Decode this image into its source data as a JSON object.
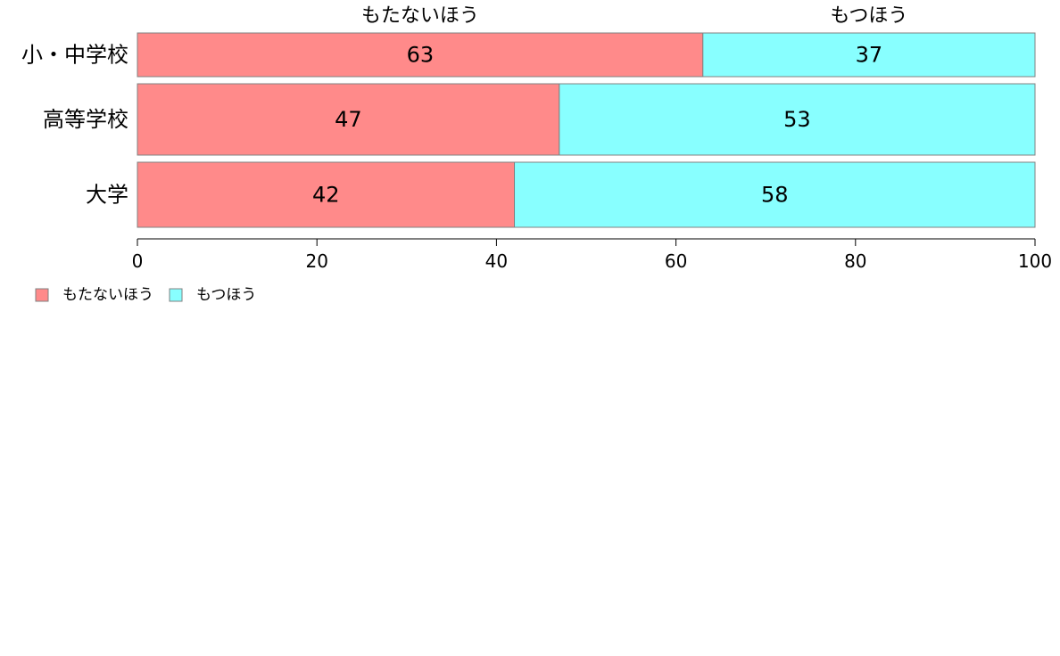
{
  "chart_data": {
    "type": "bar",
    "orientation": "horizontal",
    "stacked": true,
    "categories": [
      "小・中学校",
      "高等学校",
      "大学"
    ],
    "series": [
      {
        "name": "もたないほう",
        "values": [
          63,
          47,
          42
        ],
        "color": "#ff8a8a"
      },
      {
        "name": "もつほう",
        "values": [
          37,
          53,
          58
        ],
        "color": "#88ffff"
      }
    ],
    "xlim": [
      0,
      100
    ],
    "xticks": [
      0,
      20,
      40,
      60,
      80,
      100
    ],
    "tick_labels": [
      "0",
      "20",
      "40",
      "60",
      "80",
      "100"
    ],
    "segment_headers": [
      "もたないほう",
      "もつほう"
    ],
    "legend": {
      "position": "bottom-left",
      "entries": [
        "もたないほう",
        "もつほう"
      ]
    },
    "grid": false,
    "title": "",
    "xlabel": "",
    "ylabel": ""
  }
}
